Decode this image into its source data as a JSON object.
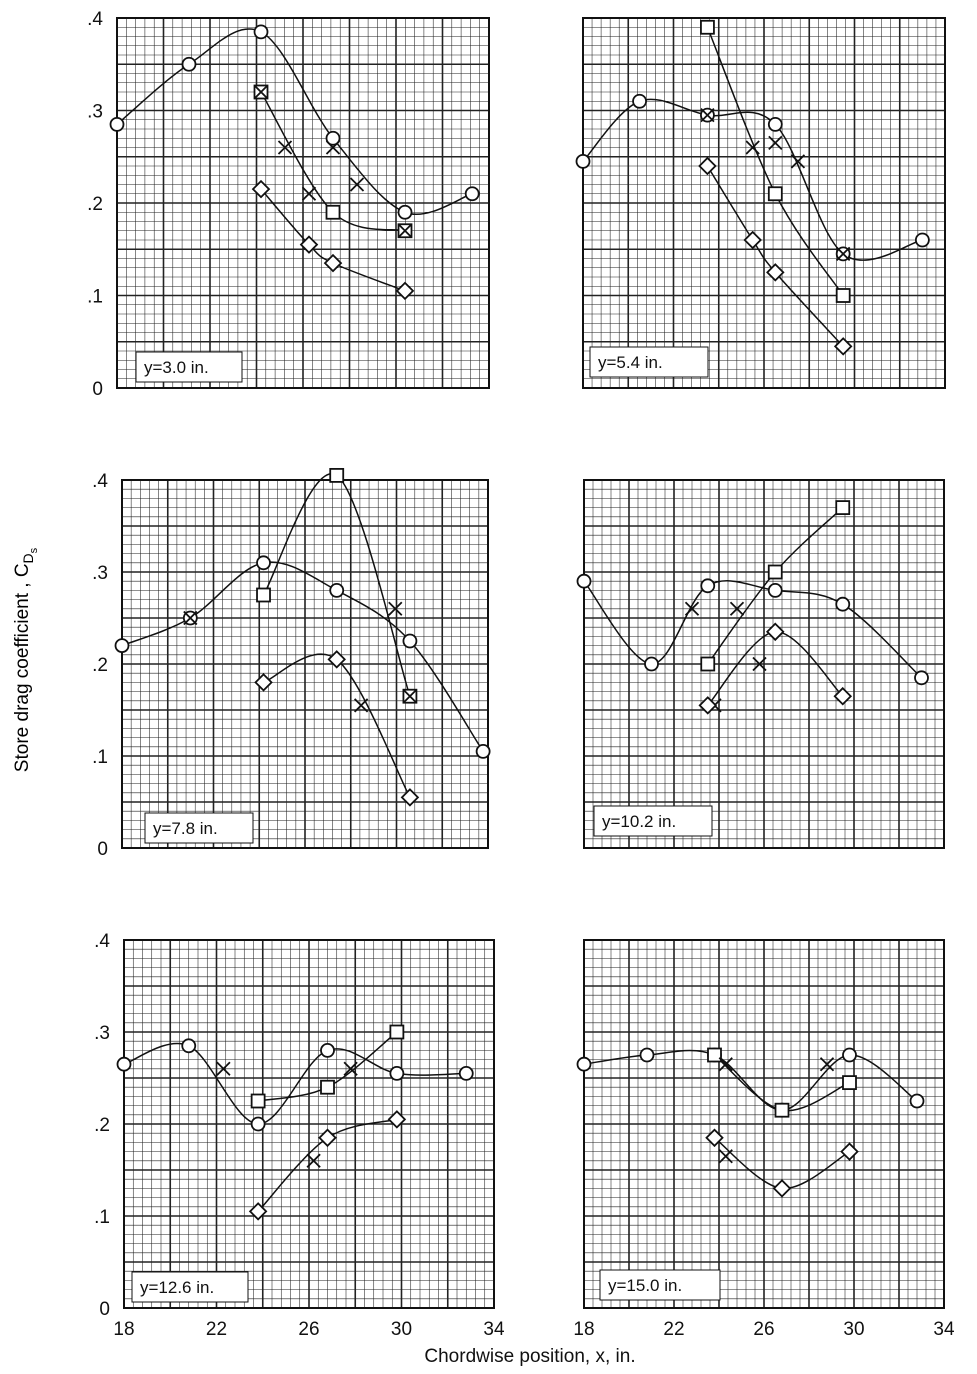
{
  "figure": {
    "ylabel": "Store drag coefficient ,  C",
    "ylabel_sub": "D",
    "ylabel_subsub": "s",
    "xlabel": "Chordwise  position,  x,  in."
  },
  "chart_data": [
    {
      "type": "line",
      "label": "y=3.0  in.",
      "xlim": [
        17.5,
        33
      ],
      "ylim": [
        0,
        0.4
      ],
      "xticks": [],
      "yticks": [
        "0",
        ".1",
        ".2",
        ".3",
        ".4"
      ],
      "grid": true,
      "series": [
        {
          "marker": "circle",
          "x": [
            17.5,
            20.5,
            23.5,
            26.5,
            29.5,
            32.3
          ],
          "y": [
            0.285,
            0.35,
            0.385,
            0.27,
            0.19,
            0.21
          ]
        },
        {
          "marker": "square",
          "x": [
            23.5,
            26.5,
            29.5
          ],
          "y": [
            0.32,
            0.19,
            0.17
          ]
        },
        {
          "marker": "x",
          "x": [
            23.5,
            24.5,
            25.5,
            26.5,
            27.5,
            29.5
          ],
          "y": [
            0.32,
            0.26,
            0.21,
            0.26,
            0.22,
            0.17
          ]
        },
        {
          "marker": "diamond",
          "x": [
            23.5,
            25.5,
            26.5,
            29.5
          ],
          "y": [
            0.215,
            0.155,
            0.135,
            0.105
          ]
        }
      ]
    },
    {
      "type": "line",
      "label": "y=5.4  in.",
      "xlim": [
        18,
        34
      ],
      "ylim": [
        0,
        0.4
      ],
      "xticks": [],
      "yticks": [],
      "grid": true,
      "series": [
        {
          "marker": "circle",
          "x": [
            18,
            20.5,
            23.5,
            26.5,
            29.5,
            33
          ],
          "y": [
            0.245,
            0.31,
            0.295,
            0.285,
            0.145,
            0.16
          ]
        },
        {
          "marker": "square",
          "x": [
            23.5,
            26.5,
            29.5
          ],
          "y": [
            0.39,
            0.21,
            0.1
          ]
        },
        {
          "marker": "x",
          "x": [
            23.5,
            25.5,
            26.5,
            27.5,
            29.5
          ],
          "y": [
            0.295,
            0.26,
            0.265,
            0.245,
            0.145
          ]
        },
        {
          "marker": "diamond",
          "x": [
            23.5,
            25.5,
            26.5,
            29.5
          ],
          "y": [
            0.24,
            0.16,
            0.125,
            0.045
          ]
        }
      ]
    },
    {
      "type": "line",
      "label": "y=7.8  in.",
      "xlim": [
        18,
        33
      ],
      "ylim": [
        0,
        0.4
      ],
      "xticks": [],
      "yticks": [
        "0",
        ".1",
        ".2",
        ".3",
        ".4"
      ],
      "grid": true,
      "series": [
        {
          "marker": "circle",
          "x": [
            18,
            20.8,
            23.8,
            26.8,
            29.8,
            32.8
          ],
          "y": [
            0.22,
            0.25,
            0.31,
            0.28,
            0.225,
            0.105
          ]
        },
        {
          "marker": "square",
          "x": [
            23.8,
            26.8,
            29.8
          ],
          "y": [
            0.275,
            0.405,
            0.165
          ]
        },
        {
          "marker": "x",
          "x": [
            20.8,
            27.8,
            29.2,
            29.8
          ],
          "y": [
            0.25,
            0.155,
            0.26,
            0.165
          ]
        },
        {
          "marker": "diamond",
          "x": [
            23.8,
            26.8,
            29.8
          ],
          "y": [
            0.18,
            0.205,
            0.055
          ]
        }
      ]
    },
    {
      "type": "line",
      "label": "y=10.2  in.",
      "xlim": [
        18,
        34
      ],
      "ylim": [
        0,
        0.4
      ],
      "xticks": [],
      "yticks": [],
      "grid": true,
      "series": [
        {
          "marker": "circle",
          "x": [
            18,
            21,
            23.5,
            26.5,
            29.5,
            33
          ],
          "y": [
            0.29,
            0.2,
            0.285,
            0.28,
            0.265,
            0.185
          ]
        },
        {
          "marker": "square",
          "x": [
            23.5,
            26.5,
            29.5
          ],
          "y": [
            0.2,
            0.3,
            0.37
          ]
        },
        {
          "marker": "x",
          "x": [
            22.8,
            24.8,
            23.8,
            25.8
          ],
          "y": [
            0.26,
            0.26,
            0.155,
            0.2
          ]
        },
        {
          "marker": "diamond",
          "x": [
            23.5,
            26.5,
            29.5
          ],
          "y": [
            0.155,
            0.235,
            0.165
          ]
        }
      ]
    },
    {
      "type": "line",
      "label": "y=12.6  in.",
      "xlim": [
        18,
        34
      ],
      "ylim": [
        0,
        0.4
      ],
      "xticks": [
        "18",
        "22",
        "26",
        "30",
        "34"
      ],
      "yticks": [
        "0",
        ".1",
        ".2",
        ".3",
        ".4"
      ],
      "grid": true,
      "series": [
        {
          "marker": "circle",
          "x": [
            18,
            20.8,
            23.8,
            26.8,
            29.8,
            32.8
          ],
          "y": [
            0.265,
            0.285,
            0.2,
            0.28,
            0.255,
            0.255
          ]
        },
        {
          "marker": "square",
          "x": [
            23.8,
            26.8,
            29.8
          ],
          "y": [
            0.225,
            0.24,
            0.3
          ]
        },
        {
          "marker": "x",
          "x": [
            22.3,
            26.2,
            27.8
          ],
          "y": [
            0.26,
            0.16,
            0.26
          ]
        },
        {
          "marker": "diamond",
          "x": [
            23.8,
            26.8,
            29.8
          ],
          "y": [
            0.105,
            0.185,
            0.205
          ]
        }
      ]
    },
    {
      "type": "line",
      "label": "y=15.0  in.",
      "xlim": [
        18,
        34
      ],
      "ylim": [
        0,
        0.4
      ],
      "xticks": [
        "18",
        "22",
        "26",
        "30",
        "34"
      ],
      "yticks": [],
      "grid": true,
      "series": [
        {
          "marker": "circle",
          "x": [
            18,
            20.8,
            23.8,
            26.8,
            29.8,
            32.8
          ],
          "y": [
            0.265,
            0.275,
            0.275,
            0.215,
            0.275,
            0.225
          ]
        },
        {
          "marker": "square",
          "x": [
            23.8,
            26.8,
            29.8
          ],
          "y": [
            0.275,
            0.215,
            0.245
          ]
        },
        {
          "marker": "x",
          "x": [
            24.3,
            28.8,
            24.3
          ],
          "y": [
            0.265,
            0.265,
            0.165
          ]
        },
        {
          "marker": "diamond",
          "x": [
            23.8,
            26.8,
            29.8
          ],
          "y": [
            0.185,
            0.13,
            0.17
          ]
        }
      ]
    }
  ]
}
